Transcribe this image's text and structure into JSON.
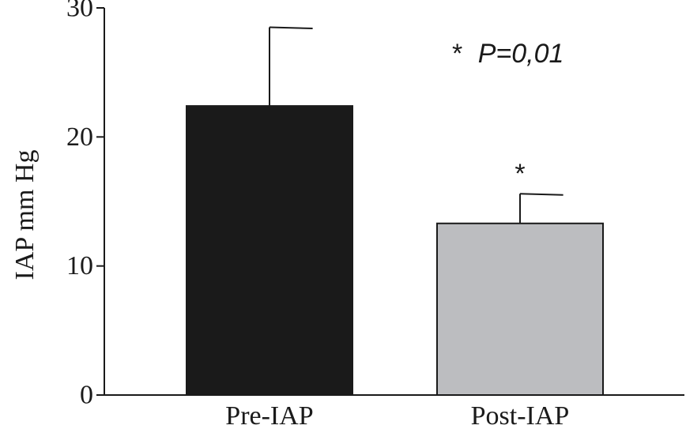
{
  "chart_data": {
    "type": "bar",
    "categories": [
      "Pre-IAP",
      "Post-IAP"
    ],
    "values": [
      22.4,
      13.3
    ],
    "errors": [
      6.1,
      2.3
    ],
    "colors": [
      "#1a1a1a",
      "#bcbdc0"
    ],
    "ylabel": "IAP mm Hg",
    "ylim": [
      0,
      30
    ],
    "yticks": [
      "0",
      "10",
      "20",
      "30"
    ],
    "grid": false,
    "annotation": {
      "star": "*",
      "text": "P=0,01"
    },
    "significance_marks": [
      "",
      "*"
    ]
  }
}
